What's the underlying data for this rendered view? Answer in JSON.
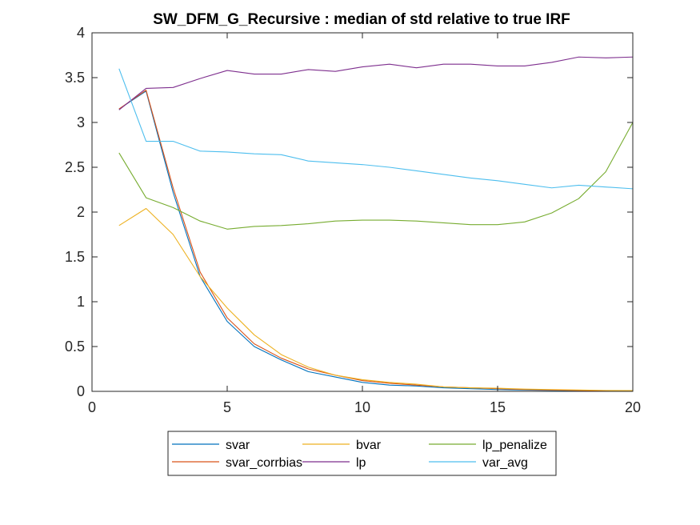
{
  "chart_data": {
    "type": "line",
    "title": "SW_DFM_G_Recursive : median of std relative to true IRF",
    "xlabel": "",
    "ylabel": "",
    "xlim": [
      0,
      20
    ],
    "ylim": [
      0,
      4
    ],
    "xticks": [
      0,
      5,
      10,
      15,
      20
    ],
    "xtick_labels": [
      "0",
      "5",
      "10",
      "15",
      "20"
    ],
    "yticks": [
      0,
      0.5,
      1,
      1.5,
      2,
      2.5,
      3,
      3.5,
      4
    ],
    "ytick_labels": [
      "0",
      "0.5",
      "1",
      "1.5",
      "2",
      "2.5",
      "3",
      "3.5",
      "4"
    ],
    "grid": false,
    "legend_position": "bottom-outside",
    "x": [
      1,
      2,
      3,
      4,
      5,
      6,
      7,
      8,
      9,
      10,
      11,
      12,
      13,
      14,
      15,
      16,
      17,
      18,
      19,
      20
    ],
    "series": [
      {
        "name": "svar",
        "color": "#0072BD",
        "values": [
          3.15,
          3.35,
          2.22,
          1.28,
          0.78,
          0.5,
          0.35,
          0.22,
          0.16,
          0.1,
          0.07,
          0.06,
          0.04,
          0.03,
          0.02,
          0.015,
          0.01,
          0.008,
          0.006,
          0.005
        ]
      },
      {
        "name": "svar_corrbias",
        "color": "#D95319",
        "values": [
          3.15,
          3.36,
          2.27,
          1.33,
          0.82,
          0.53,
          0.37,
          0.25,
          0.18,
          0.12,
          0.09,
          0.07,
          0.05,
          0.04,
          0.03,
          0.02,
          0.015,
          0.01,
          0.008,
          0.006
        ]
      },
      {
        "name": "bvar",
        "color": "#EDB120",
        "values": [
          1.85,
          2.04,
          1.75,
          1.28,
          0.93,
          0.63,
          0.41,
          0.27,
          0.18,
          0.13,
          0.1,
          0.08,
          0.05,
          0.04,
          0.035,
          0.025,
          0.02,
          0.015,
          0.01,
          0.008
        ]
      },
      {
        "name": "lp",
        "color": "#7E2F8E",
        "values": [
          3.14,
          3.38,
          3.39,
          3.49,
          3.58,
          3.54,
          3.54,
          3.59,
          3.57,
          3.62,
          3.65,
          3.61,
          3.65,
          3.65,
          3.63,
          3.63,
          3.67,
          3.73,
          3.72,
          3.73
        ]
      },
      {
        "name": "lp_penalize",
        "color": "#77AC30",
        "values": [
          2.66,
          2.16,
          2.05,
          1.9,
          1.81,
          1.84,
          1.85,
          1.87,
          1.9,
          1.91,
          1.91,
          1.9,
          1.88,
          1.86,
          1.86,
          1.89,
          1.99,
          2.15,
          2.45,
          3.0
        ]
      },
      {
        "name": "var_avg",
        "color": "#4DBEEE",
        "values": [
          3.6,
          2.79,
          2.79,
          2.68,
          2.67,
          2.65,
          2.64,
          2.57,
          2.55,
          2.53,
          2.5,
          2.46,
          2.42,
          2.38,
          2.35,
          2.31,
          2.27,
          2.3,
          2.28,
          2.26
        ]
      }
    ],
    "legend_order": [
      "svar",
      "bvar",
      "lp_penalize",
      "svar_corrbias",
      "lp",
      "var_avg"
    ]
  }
}
